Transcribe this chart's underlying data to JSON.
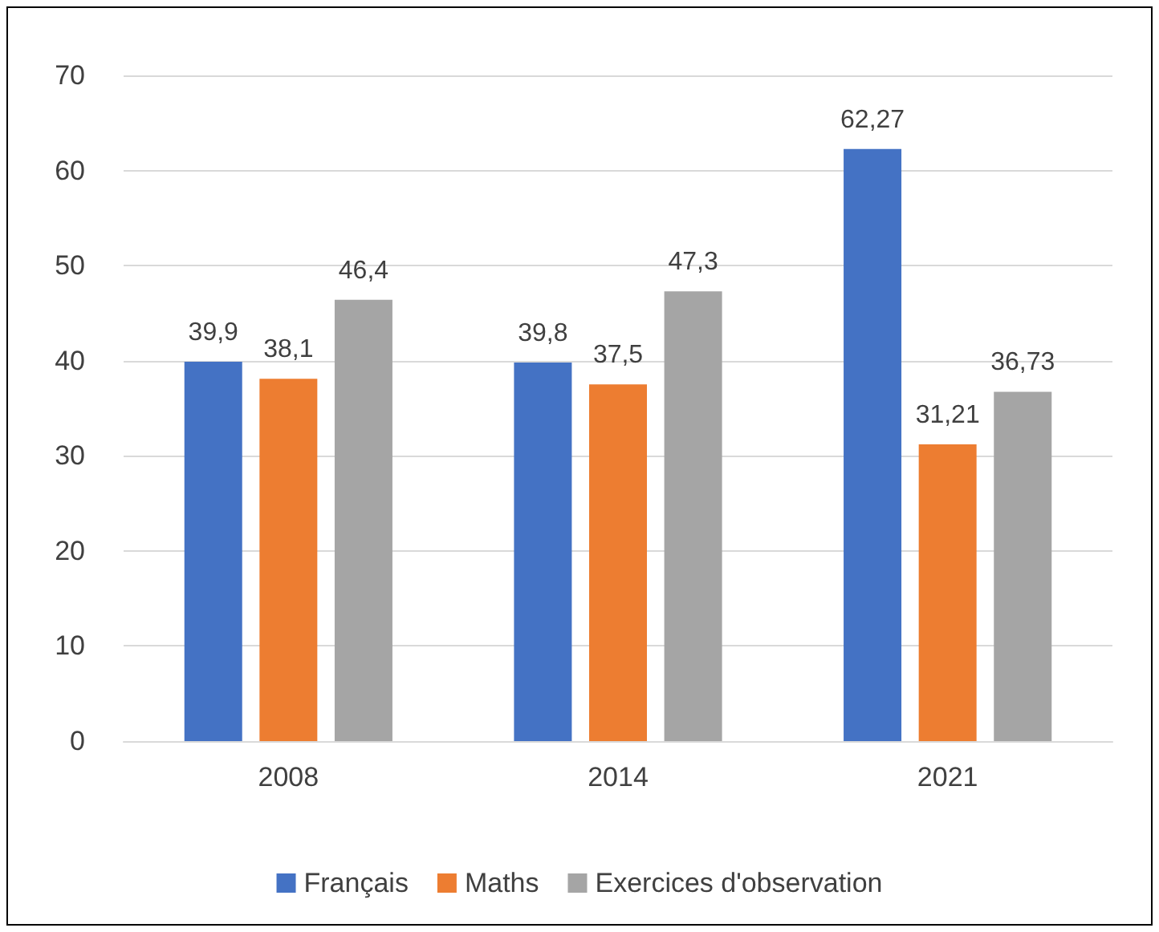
{
  "chart_data": {
    "type": "bar",
    "categories": [
      "2008",
      "2014",
      "2021"
    ],
    "series": [
      {
        "name": "Français",
        "color": "#4472c4",
        "values": [
          39.9,
          39.8,
          62.27
        ],
        "value_labels": [
          "39,9",
          "39,8",
          "62,27"
        ]
      },
      {
        "name": "Maths",
        "color": "#ed7d31",
        "values": [
          38.1,
          37.5,
          31.21
        ],
        "value_labels": [
          "38,1",
          "37,5",
          "31,21"
        ]
      },
      {
        "name": "Exercices d'observation",
        "color": "#a5a5a5",
        "values": [
          46.4,
          47.3,
          36.73
        ],
        "value_labels": [
          "46,4",
          "47,3",
          "36,73"
        ]
      }
    ],
    "ylim": [
      0,
      70
    ],
    "yticks": [
      0,
      10,
      20,
      30,
      40,
      50,
      60,
      70
    ],
    "grid": "y",
    "legend": "bottom"
  }
}
